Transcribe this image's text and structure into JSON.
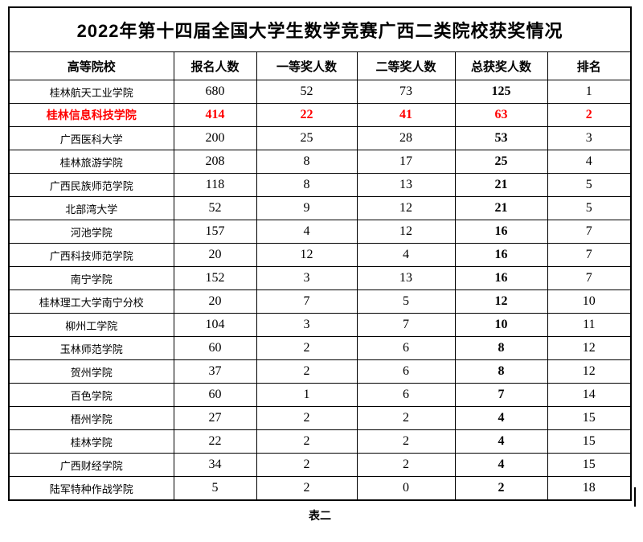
{
  "page": {
    "title": "2022年第十四届全国大学生数学竞赛广西二类院校获奖情况",
    "caption": "表二"
  },
  "colors": {
    "highlight_red": "#ff0000",
    "text": "#000000",
    "border": "#000000",
    "background": "#ffffff"
  },
  "table": {
    "headers": [
      "高等院校",
      "报名人数",
      "一等奖人数",
      "二等奖人数",
      "总获奖人数",
      "排名"
    ],
    "rows": [
      {
        "school": "桂林航天工业学院",
        "applicants": "680",
        "first_prize": "52",
        "second_prize": "73",
        "total_awards": "125",
        "rank": "1",
        "highlight": false
      },
      {
        "school": "桂林信息科技学院",
        "applicants": "414",
        "first_prize": "22",
        "second_prize": "41",
        "total_awards": "63",
        "rank": "2",
        "highlight": true
      },
      {
        "school": "广西医科大学",
        "applicants": "200",
        "first_prize": "25",
        "second_prize": "28",
        "total_awards": "53",
        "rank": "3",
        "highlight": false
      },
      {
        "school": "桂林旅游学院",
        "applicants": "208",
        "first_prize": "8",
        "second_prize": "17",
        "total_awards": "25",
        "rank": "4",
        "highlight": false
      },
      {
        "school": "广西民族师范学院",
        "applicants": "118",
        "first_prize": "8",
        "second_prize": "13",
        "total_awards": "21",
        "rank": "5",
        "highlight": false
      },
      {
        "school": "北部湾大学",
        "applicants": "52",
        "first_prize": "9",
        "second_prize": "12",
        "total_awards": "21",
        "rank": "5",
        "highlight": false
      },
      {
        "school": "河池学院",
        "applicants": "157",
        "first_prize": "4",
        "second_prize": "12",
        "total_awards": "16",
        "rank": "7",
        "highlight": false
      },
      {
        "school": "广西科技师范学院",
        "applicants": "20",
        "first_prize": "12",
        "second_prize": "4",
        "total_awards": "16",
        "rank": "7",
        "highlight": false
      },
      {
        "school": "南宁学院",
        "applicants": "152",
        "first_prize": "3",
        "second_prize": "13",
        "total_awards": "16",
        "rank": "7",
        "highlight": false
      },
      {
        "school": "桂林理工大学南宁分校",
        "applicants": "20",
        "first_prize": "7",
        "second_prize": "5",
        "total_awards": "12",
        "rank": "10",
        "highlight": false
      },
      {
        "school": "柳州工学院",
        "applicants": "104",
        "first_prize": "3",
        "second_prize": "7",
        "total_awards": "10",
        "rank": "11",
        "highlight": false
      },
      {
        "school": "玉林师范学院",
        "applicants": "60",
        "first_prize": "2",
        "second_prize": "6",
        "total_awards": "8",
        "rank": "12",
        "highlight": false
      },
      {
        "school": "贺州学院",
        "applicants": "37",
        "first_prize": "2",
        "second_prize": "6",
        "total_awards": "8",
        "rank": "12",
        "highlight": false
      },
      {
        "school": "百色学院",
        "applicants": "60",
        "first_prize": "1",
        "second_prize": "6",
        "total_awards": "7",
        "rank": "14",
        "highlight": false
      },
      {
        "school": "梧州学院",
        "applicants": "27",
        "first_prize": "2",
        "second_prize": "2",
        "total_awards": "4",
        "rank": "15",
        "highlight": false
      },
      {
        "school": "桂林学院",
        "applicants": "22",
        "first_prize": "2",
        "second_prize": "2",
        "total_awards": "4",
        "rank": "15",
        "highlight": false
      },
      {
        "school": "广西财经学院",
        "applicants": "34",
        "first_prize": "2",
        "second_prize": "2",
        "total_awards": "4",
        "rank": "15",
        "highlight": false
      },
      {
        "school": "陆军特种作战学院",
        "applicants": "5",
        "first_prize": "2",
        "second_prize": "0",
        "total_awards": "2",
        "rank": "18",
        "highlight": false
      }
    ]
  }
}
